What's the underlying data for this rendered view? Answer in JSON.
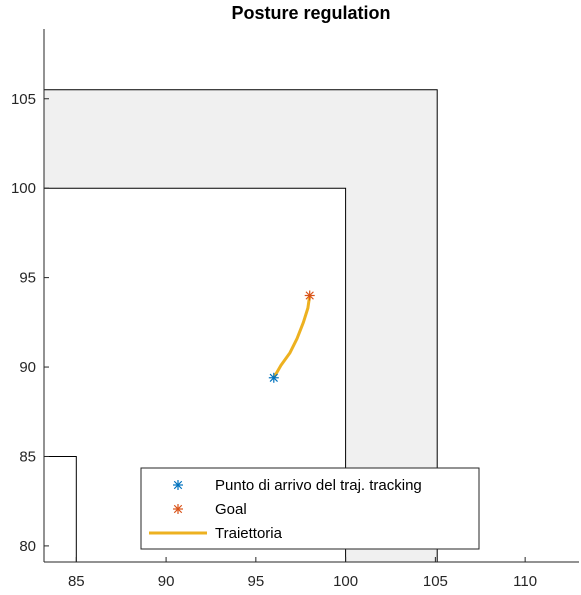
{
  "chart_data": {
    "type": "line",
    "title": "Posture regulation",
    "xlabel": "",
    "ylabel": "",
    "xlim": [
      83.2,
      113
    ],
    "ylim": [
      79.1,
      108.9
    ],
    "xticks": [
      85,
      90,
      95,
      100,
      105,
      110
    ],
    "yticks": [
      80,
      85,
      90,
      95,
      100,
      105
    ],
    "grid": false,
    "legend_location": "bottom-center",
    "obstacles": [
      {
        "name": "corridor-wall",
        "fill": "#f0f0f0",
        "polygon": [
          [
            83.2,
            105.5
          ],
          [
            105.1,
            105.5
          ],
          [
            105.1,
            79.1
          ],
          [
            100,
            79.1
          ],
          [
            100,
            100
          ],
          [
            83.2,
            100
          ]
        ]
      },
      {
        "name": "corner-wall",
        "fill": "#ffffff",
        "polygon": [
          [
            83.2,
            85
          ],
          [
            85,
            85
          ],
          [
            85,
            79.1
          ],
          [
            83.2,
            79.1
          ]
        ]
      }
    ],
    "series": [
      {
        "name": "Punto di arrivo del traj. tracking",
        "type": "scatter",
        "marker": "asterisk",
        "color": "#0072BD",
        "x": [
          96
        ],
        "y": [
          89.4
        ]
      },
      {
        "name": "Goal",
        "type": "scatter",
        "marker": "asterisk",
        "color": "#D95319",
        "x": [
          98
        ],
        "y": [
          94
        ]
      },
      {
        "name": "Traiettoria",
        "type": "line",
        "color": "#EDB120",
        "x": [
          96,
          96.4,
          96.9,
          97.3,
          97.65,
          97.9,
          98
        ],
        "y": [
          89.4,
          90.1,
          90.8,
          91.6,
          92.5,
          93.3,
          94
        ]
      }
    ]
  }
}
